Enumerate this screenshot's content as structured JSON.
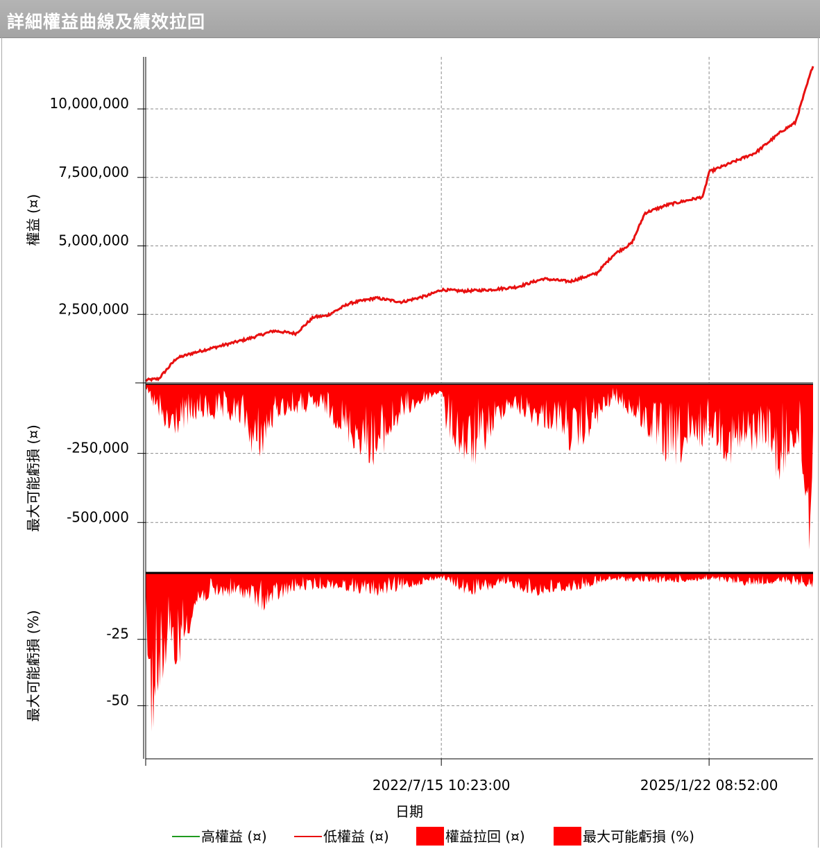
{
  "title": "詳細權益曲線及績效拉回",
  "colors": {
    "equity": "#e81010",
    "fill": "#ff0000",
    "high_equity": "#1f9a1f",
    "grid": "#8a8a8a",
    "titlebar": "#a8a8a8"
  },
  "chart_data": [
    {
      "type": "line",
      "panel": "equity",
      "ylabel": "權益 (¤)",
      "ylim": [
        0,
        11900000
      ],
      "yticks": [
        2500000,
        5000000,
        7500000,
        10000000
      ],
      "ytick_labels": [
        "2,500,000",
        "5,000,000",
        "7,500,000",
        "10,000,000"
      ],
      "x": [
        "2019/10/01",
        "2019/11/15",
        "2020/01/15",
        "2020/03/15",
        "2020/06/15",
        "2020/09/15",
        "2020/12/15",
        "2021/03/01",
        "2021/05/01",
        "2021/06/15",
        "2021/09/01",
        "2021/12/01",
        "2022/03/01",
        "2022/06/01",
        "2022/07/15",
        "2022/10/01",
        "2023/01/01",
        "2023/04/01",
        "2023/07/01",
        "2023/10/01",
        "2024/01/01",
        "2024/03/01",
        "2024/05/01",
        "2024/06/15",
        "2024/09/01",
        "2024/12/15",
        "2025/01/01",
        "2025/01/22",
        "2025/04/01",
        "2025/07/01",
        "2025/10/01",
        "2025/11/15",
        "2026/01/15"
      ],
      "series": [
        {
          "name": "低權益 (¤)",
          "values": [
            100000,
            150000,
            900000,
            1100000,
            1350000,
            1600000,
            1900000,
            1800000,
            2400000,
            2450000,
            2900000,
            3100000,
            2950000,
            3200000,
            3400000,
            3350000,
            3400000,
            3500000,
            3800000,
            3700000,
            4000000,
            4700000,
            5100000,
            6200000,
            6500000,
            6750000,
            6800000,
            7700000,
            8000000,
            8400000,
            9200000,
            9500000,
            11600000
          ]
        }
      ],
      "x_date_ticks": [
        "2022/7/15 10:23:00",
        "2025/1/22 08:52:00"
      ]
    },
    {
      "type": "area",
      "panel": "drawdown_amount",
      "ylabel": "最大可能虧損 (¤)",
      "ylim": [
        -680000,
        0
      ],
      "yticks": [
        -250000,
        -500000
      ],
      "ytick_labels": [
        "-250,000",
        "-500,000"
      ],
      "x": [
        "2019/10/01",
        "2019/12/15",
        "2020/04/01",
        "2020/09/01",
        "2020/10/15",
        "2021/01/01",
        "2021/06/01",
        "2021/09/15",
        "2021/12/01",
        "2022/03/01",
        "2022/07/15",
        "2022/08/01",
        "2022/10/15",
        "2022/11/15",
        "2023/03/01",
        "2023/06/15",
        "2023/09/01",
        "2023/10/15",
        "2024/03/01",
        "2024/06/01",
        "2024/09/01",
        "2024/12/01",
        "2025/01/22",
        "2025/04/01",
        "2025/08/01",
        "2025/10/01",
        "2025/11/01",
        "2025/12/01",
        "2026/01/01",
        "2026/01/15"
      ],
      "series": [
        {
          "name": "權益拉回 (¤)",
          "values": [
            -20000,
            -210000,
            -130000,
            -150000,
            -310000,
            -120000,
            -100000,
            -240000,
            -310000,
            -130000,
            -30000,
            -180000,
            -320000,
            -300000,
            -90000,
            -160000,
            -180000,
            -280000,
            -60000,
            -160000,
            -310000,
            -280000,
            -190000,
            -300000,
            -220000,
            -400000,
            -240000,
            -260000,
            -650000,
            -300000
          ]
        }
      ]
    },
    {
      "type": "area",
      "panel": "drawdown_percent",
      "ylabel": "最大可能虧損 (%)",
      "ylim": [
        -70,
        0
      ],
      "yticks": [
        -25,
        -50
      ],
      "ytick_labels": [
        "-25",
        "-50"
      ],
      "x": [
        "2019/10/01",
        "2019/10/15",
        "2019/11/01",
        "2019/12/01",
        "2020/01/15",
        "2020/04/01",
        "2020/07/01",
        "2020/09/15",
        "2020/11/01",
        "2021/03/01",
        "2021/07/01",
        "2021/12/01",
        "2022/03/01",
        "2022/07/15",
        "2022/10/15",
        "2023/03/01",
        "2023/06/01",
        "2023/10/15",
        "2024/03/01",
        "2024/09/01",
        "2025/01/22",
        "2025/06/01",
        "2025/10/01",
        "2025/12/01",
        "2026/01/15"
      ],
      "series": [
        {
          "name": "最大可能虧損 (%)",
          "values": [
            -5,
            -67,
            -55,
            -40,
            -38,
            -12,
            -9,
            -10,
            -15,
            -7,
            -6,
            -9,
            -7,
            -2,
            -9,
            -5,
            -9,
            -7,
            -3,
            -4,
            -3,
            -5,
            -4,
            -5,
            -6
          ]
        }
      ]
    }
  ],
  "xlabel": "日期",
  "legend": [
    {
      "label": "高權益 (¤)",
      "kind": "line",
      "color": "#1f9a1f"
    },
    {
      "label": "低權益 (¤)",
      "kind": "line",
      "color": "#e81010"
    },
    {
      "label": "權益拉回 (¤)",
      "kind": "box",
      "color": "#ff0000"
    },
    {
      "label": "最大可能虧損 (%)",
      "kind": "box",
      "color": "#ff0000"
    }
  ]
}
